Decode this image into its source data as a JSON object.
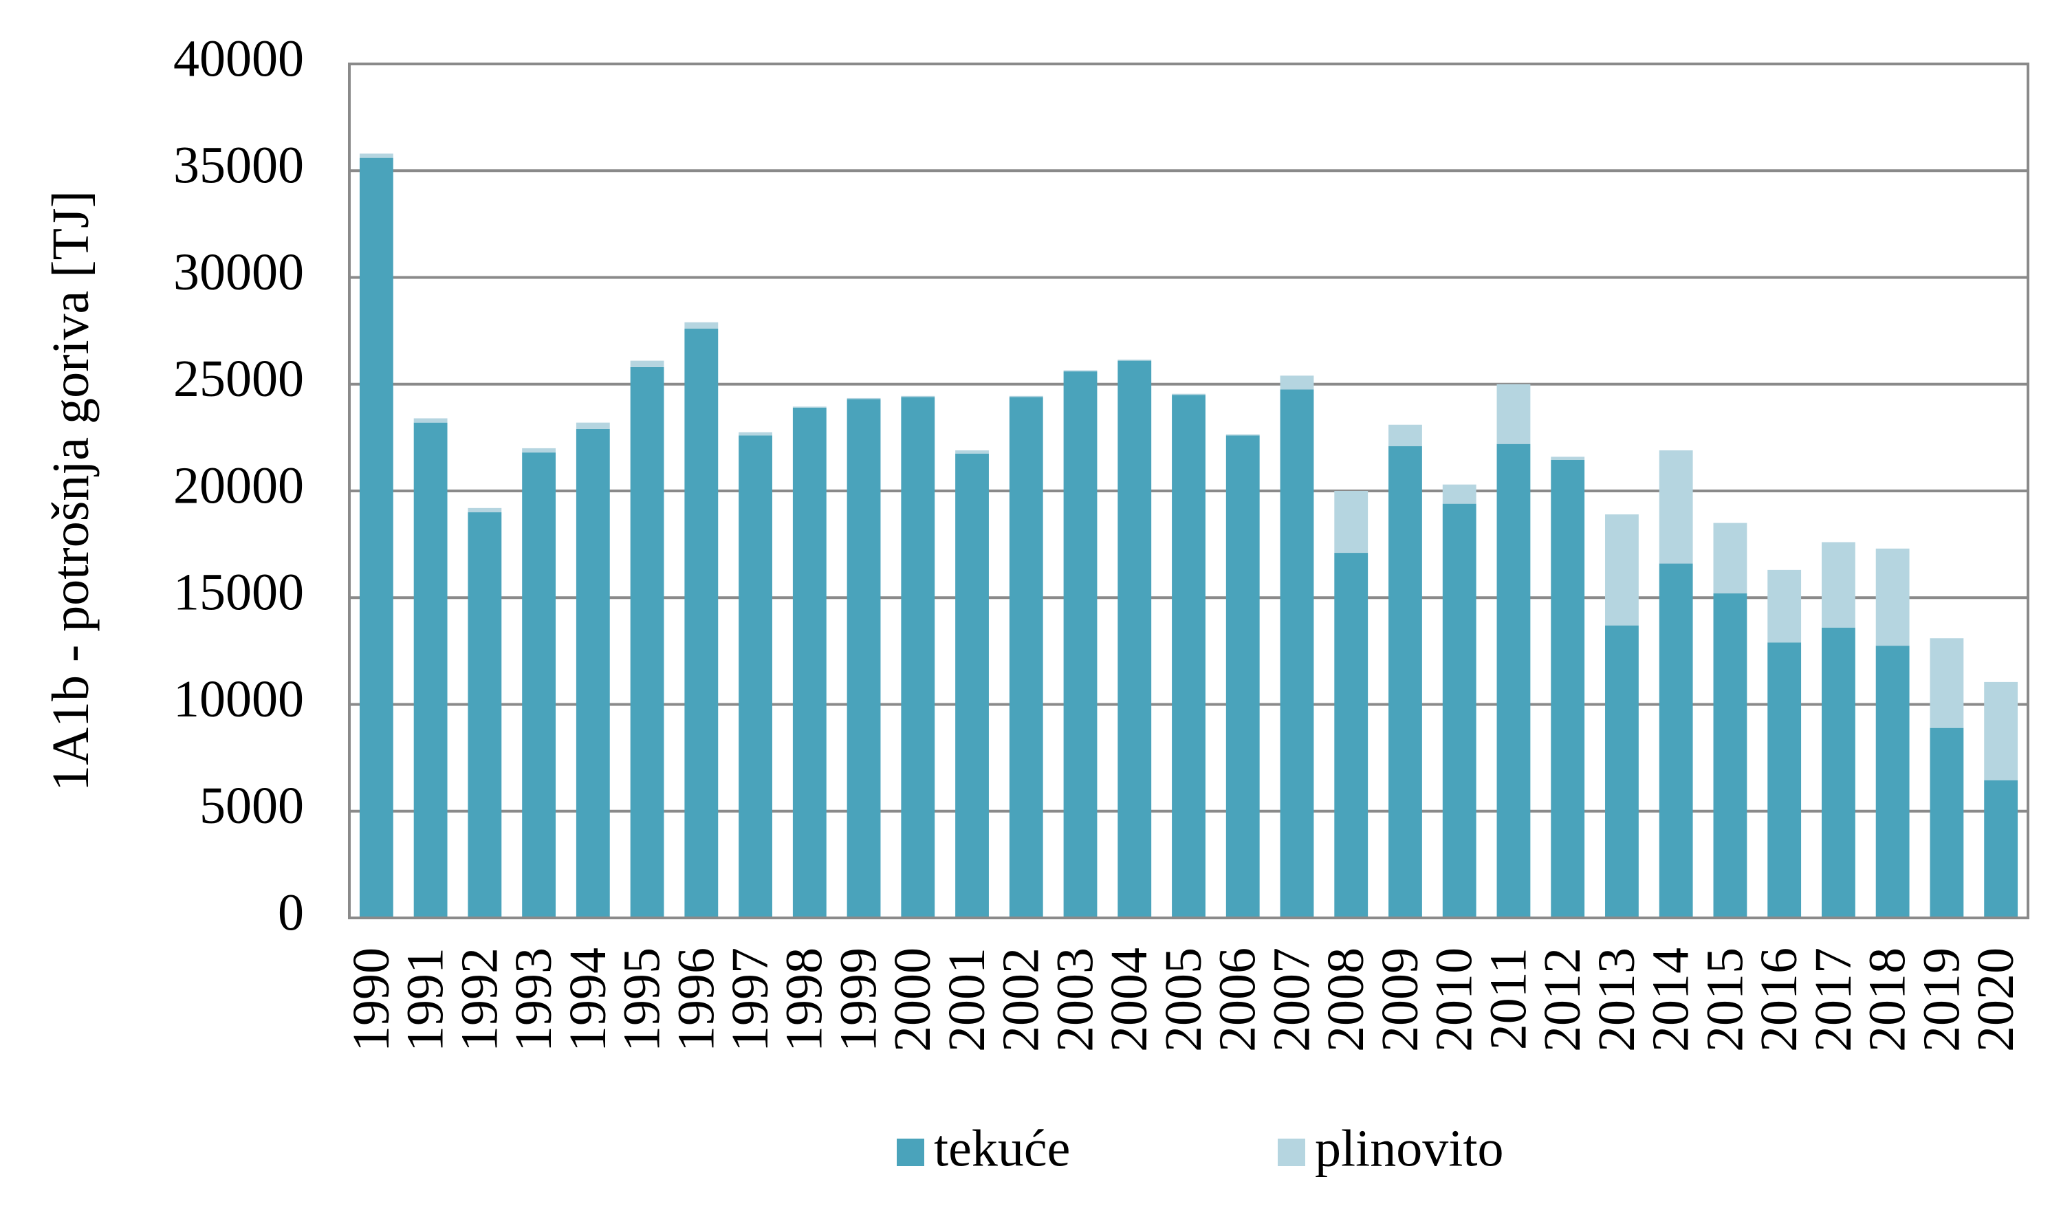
{
  "chart_data": {
    "type": "stacked_bar",
    "y_label": "1A1b  - potrošnja goriva [TJ]",
    "categories": [
      "1990",
      "1991",
      "1992",
      "1993",
      "1994",
      "1995",
      "1996",
      "1997",
      "1998",
      "1999",
      "2000",
      "2001",
      "2002",
      "2003",
      "2004",
      "2005",
      "2006",
      "2007",
      "2008",
      "2009",
      "2010",
      "2011",
      "2012",
      "2013",
      "2014",
      "2015",
      "2016",
      "2017",
      "2018",
      "2019",
      "2020"
    ],
    "series": [
      {
        "name": "tekuće",
        "color": "#4aa3bb",
        "values": [
          35600,
          23200,
          19000,
          21800,
          22900,
          25800,
          27600,
          22600,
          23900,
          24300,
          24400,
          21750,
          24400,
          25600,
          26100,
          24500,
          22600,
          24750,
          17100,
          22100,
          19400,
          22200,
          21450,
          13700,
          16600,
          15200,
          12900,
          13600,
          12750,
          8900,
          6450
        ]
      },
      {
        "name": "plinovito",
        "color": "#b5d5e0",
        "values": [
          200,
          200,
          200,
          200,
          300,
          300,
          300,
          150,
          50,
          50,
          50,
          150,
          50,
          50,
          50,
          50,
          50,
          650,
          2900,
          1000,
          900,
          2800,
          150,
          5200,
          5300,
          3300,
          3400,
          4000,
          4550,
          4200,
          4600
        ]
      }
    ],
    "ylim": [
      0,
      40000
    ],
    "yticks": [
      0,
      5000,
      10000,
      15000,
      20000,
      25000,
      30000,
      35000,
      40000
    ],
    "grid": true,
    "legend": "bottom"
  }
}
